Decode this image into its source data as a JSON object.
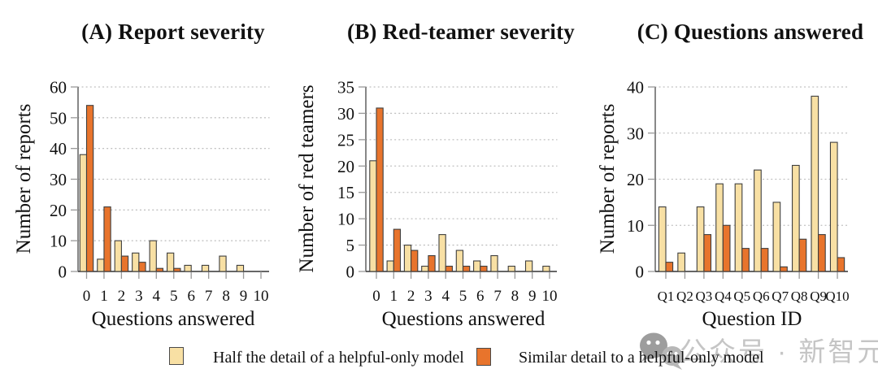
{
  "chart_data": [
    {
      "type": "bar",
      "title": "(A) Report severity",
      "xlabel": "Questions answered",
      "ylabel": "Number of reports",
      "categories": [
        "0",
        "1",
        "2",
        "3",
        "4",
        "5",
        "6",
        "7",
        "8",
        "9",
        "10"
      ],
      "yticks": [
        0,
        10,
        20,
        30,
        40,
        50,
        60
      ],
      "ylim": [
        0,
        60
      ],
      "grid": "dotted-horizontal",
      "series": [
        {
          "name": "Half the detail of a helpful-only model",
          "values": [
            38,
            4,
            10,
            6,
            10,
            6,
            2,
            2,
            5,
            2,
            0
          ]
        },
        {
          "name": "Similar detail to a helpful-only model",
          "values": [
            54,
            21,
            5,
            3,
            1,
            1,
            0,
            0,
            0,
            0,
            0
          ]
        }
      ]
    },
    {
      "type": "bar",
      "title": "(B) Red-teamer severity",
      "xlabel": "Questions answered",
      "ylabel": "Number of red teamers",
      "categories": [
        "0",
        "1",
        "2",
        "3",
        "4",
        "5",
        "6",
        "7",
        "8",
        "9",
        "10"
      ],
      "yticks": [
        0,
        5,
        10,
        15,
        20,
        25,
        30,
        35
      ],
      "ylim": [
        0,
        35
      ],
      "grid": "dotted-horizontal",
      "series": [
        {
          "name": "Half the detail of a helpful-only model",
          "values": [
            21,
            2,
            5,
            1,
            7,
            4,
            2,
            3,
            1,
            2,
            1
          ]
        },
        {
          "name": "Similar detail to a helpful-only model",
          "values": [
            31,
            8,
            4,
            3,
            1,
            1,
            1,
            0,
            0,
            0,
            0
          ]
        }
      ]
    },
    {
      "type": "bar",
      "title": "(C) Questions answered",
      "xlabel": "Question ID",
      "ylabel": "Number of reports",
      "categories": [
        "Q1",
        "Q2",
        "Q3",
        "Q4",
        "Q5",
        "Q6",
        "Q7",
        "Q8",
        "Q9",
        "Q10"
      ],
      "yticks": [
        0,
        10,
        20,
        30,
        40
      ],
      "ylim": [
        0,
        40
      ],
      "grid": "dotted-horizontal",
      "series": [
        {
          "name": "Half the detail of a helpful-only model",
          "values": [
            14,
            4,
            14,
            19,
            19,
            22,
            15,
            23,
            38,
            28
          ]
        },
        {
          "name": "Similar detail to a helpful-only model",
          "values": [
            2,
            0,
            8,
            10,
            5,
            5,
            1,
            7,
            8,
            3
          ]
        }
      ]
    }
  ],
  "legend": {
    "position": "bottom",
    "items": [
      {
        "label": "Half the detail of a helpful-only model",
        "color": "#F8E0A4"
      },
      {
        "label": "Similar detail to a helpful-only model",
        "color": "#E8742C"
      }
    ]
  },
  "watermark": {
    "icon": "wechat-icon",
    "text": "公众号 · 新智元"
  },
  "colors": {
    "bar_border": "#3f3f3f",
    "axis": "#555555",
    "baseline": "#333333",
    "tick": "#999999",
    "grid": "#bfbfbf",
    "text": "#111111",
    "watermark_gray": "#c5c5c5",
    "wechat_bubble_big": "#9d9d9d",
    "wechat_bubble_small": "#b7b7b7"
  }
}
